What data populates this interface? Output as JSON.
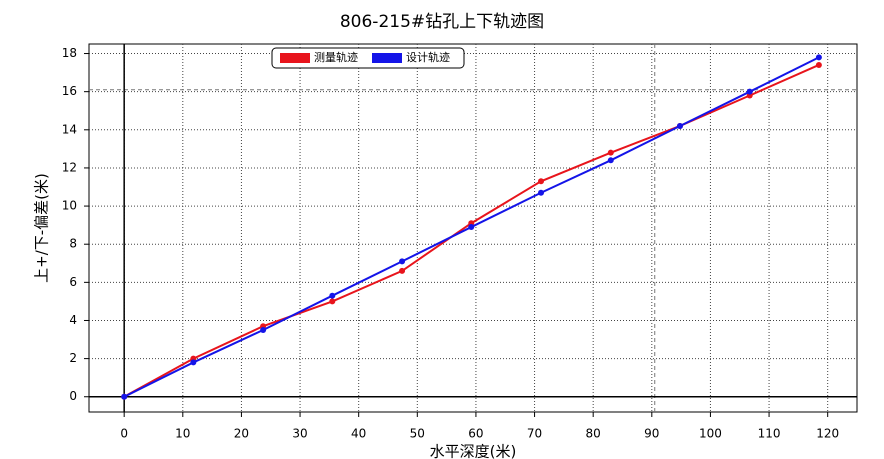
{
  "chart_data": {
    "type": "line",
    "title": "806-215#钻孔上下轨迹图",
    "x_label": "水平深度(米)",
    "y_label": "上+/下-偏差(米)",
    "x": [
      0,
      11.8,
      23.7,
      35.5,
      47.4,
      59.2,
      71.1,
      83,
      94.8,
      106.7,
      118.5
    ],
    "series": [
      {
        "name": "测量轨迹",
        "color": "#e8141c",
        "values": [
          0,
          2.0,
          3.7,
          5.0,
          6.6,
          9.1,
          11.3,
          12.8,
          14.2,
          15.8,
          17.4
        ]
      },
      {
        "name": "设计轨迹",
        "color": "#1414e8",
        "values": [
          0,
          1.8,
          3.5,
          5.3,
          7.1,
          8.9,
          10.7,
          12.4,
          14.2,
          16.0,
          17.8
        ]
      }
    ],
    "xlim": [
      -6,
      125
    ],
    "ylim": [
      -0.8,
      18.5
    ],
    "xticks": [
      0,
      10,
      20,
      30,
      40,
      50,
      60,
      70,
      80,
      90,
      100,
      110,
      120
    ],
    "yticks": [
      0,
      2,
      4,
      6,
      8,
      10,
      12,
      14,
      16,
      18
    ],
    "vlines": [
      90.5
    ],
    "hlines": [
      16.1
    ],
    "grid": true,
    "legend": "top"
  }
}
